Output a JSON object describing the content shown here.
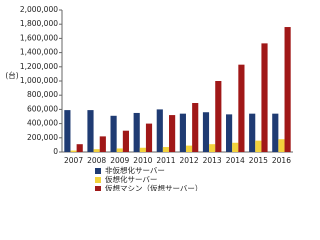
{
  "chart_data": {
    "type": "bar",
    "y_label": "(台)",
    "categories": [
      "2007",
      "2008",
      "2009",
      "2010",
      "2011",
      "2012",
      "2013",
      "2014",
      "2015",
      "2016"
    ],
    "series": [
      {
        "name": "非仮想化サーバー",
        "color": "#1f3b73",
        "values": [
          590000,
          590000,
          510000,
          550000,
          600000,
          540000,
          560000,
          530000,
          540000,
          540000
        ]
      },
      {
        "name": "仮想化サーバー",
        "color": "#f2d23c",
        "values": [
          20000,
          40000,
          50000,
          60000,
          70000,
          90000,
          110000,
          130000,
          160000,
          180000
        ]
      },
      {
        "name": "仮想マシン（仮想サーバー）",
        "color": "#a01818",
        "values": [
          110000,
          220000,
          300000,
          400000,
          520000,
          690000,
          1000000,
          1230000,
          1530000,
          1760000
        ]
      }
    ],
    "ylim": [
      0,
      2000000
    ],
    "yticks": [
      0,
      {
        "value": 200000,
        "label": "200,000"
      },
      {
        "value": 400000,
        "label": "400,000"
      },
      {
        "value": 600000,
        "label": "600,000"
      },
      {
        "value": 800000,
        "label": "800,000"
      },
      {
        "value": 1000000,
        "label": "1,000,000"
      },
      {
        "value": 1200000,
        "label": "1,200,000"
      },
      {
        "value": 1400000,
        "label": "1,400,000"
      },
      {
        "value": 1600000,
        "label": "1,600,000"
      },
      {
        "value": 1800000,
        "label": "1,800,000"
      },
      {
        "value": 2000000,
        "label": "2,000,000"
      }
    ],
    "grid": false
  }
}
